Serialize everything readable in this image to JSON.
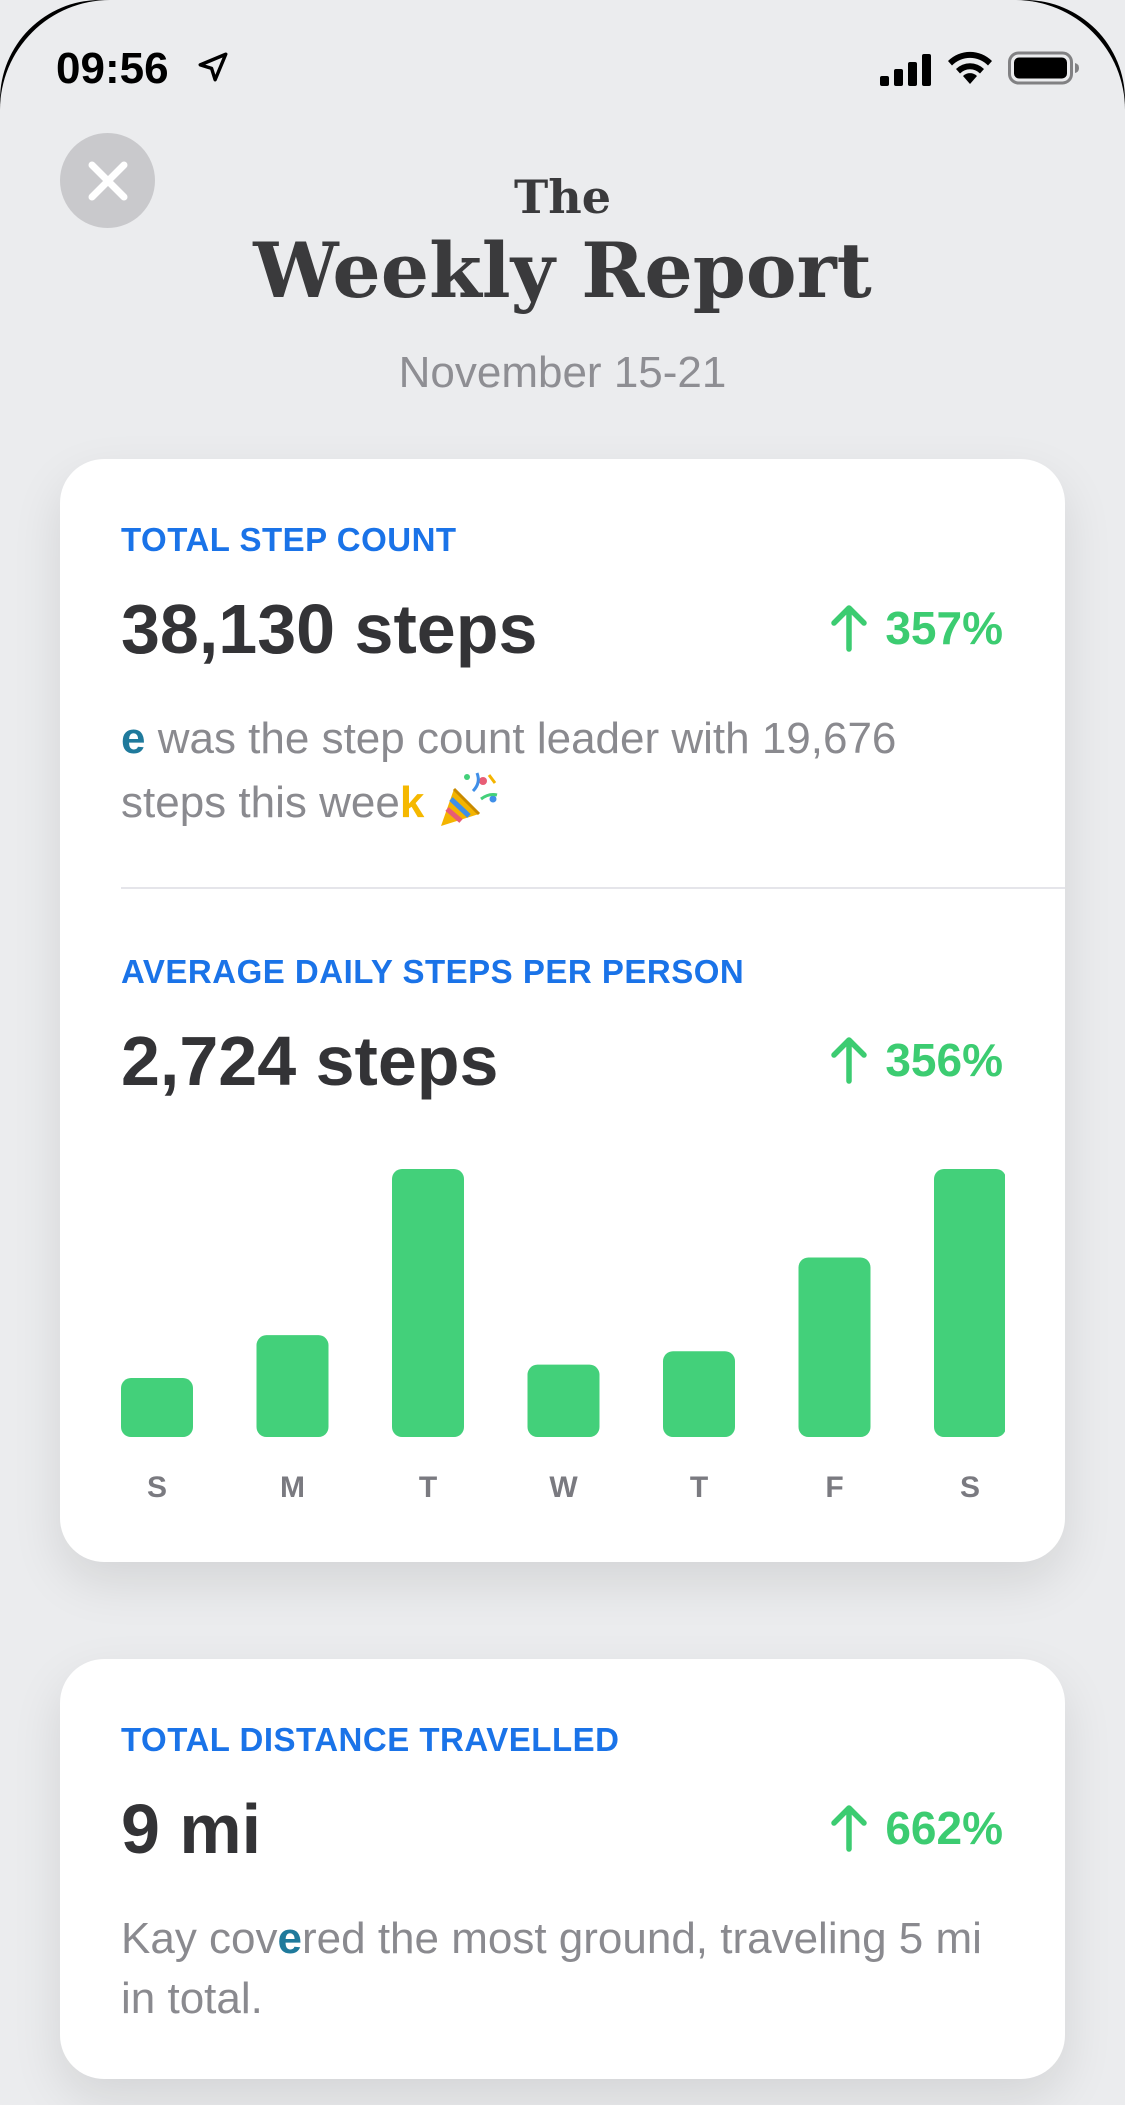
{
  "status_bar": {
    "time": "09:56"
  },
  "header": {
    "pre_title": "The",
    "title": "Weekly Report",
    "date_range": "November 15-21"
  },
  "total_steps": {
    "label": "TOTAL STEP COUNT",
    "value": "38,130 steps",
    "change": "357%",
    "caption_initial": "e",
    "caption_mid": " was the step count leader with 19,676 steps this wee",
    "caption_end": "k"
  },
  "average_steps": {
    "label": "AVERAGE DAILY STEPS PER PERSON",
    "value": "2,724 steps",
    "change": "356%"
  },
  "chart_data": {
    "type": "bar",
    "categories": [
      "S",
      "M",
      "T",
      "W",
      "T",
      "F",
      "S"
    ],
    "values": [
      22,
      38,
      100,
      27,
      32,
      67,
      100
    ],
    "ylim": [
      0,
      100
    ],
    "color": "#43d07a"
  },
  "distance": {
    "label": "TOTAL DISTANCE TRAVELLED",
    "value": "9 mi",
    "change": "662%",
    "caption_a": "Kay cov",
    "caption_b": "e",
    "caption_c": "red the most ground, traveling 5 mi in total."
  },
  "colors": {
    "accent_blue": "#1a73e8",
    "positive_green": "#3ccc71",
    "bar_green": "#43d07a"
  }
}
